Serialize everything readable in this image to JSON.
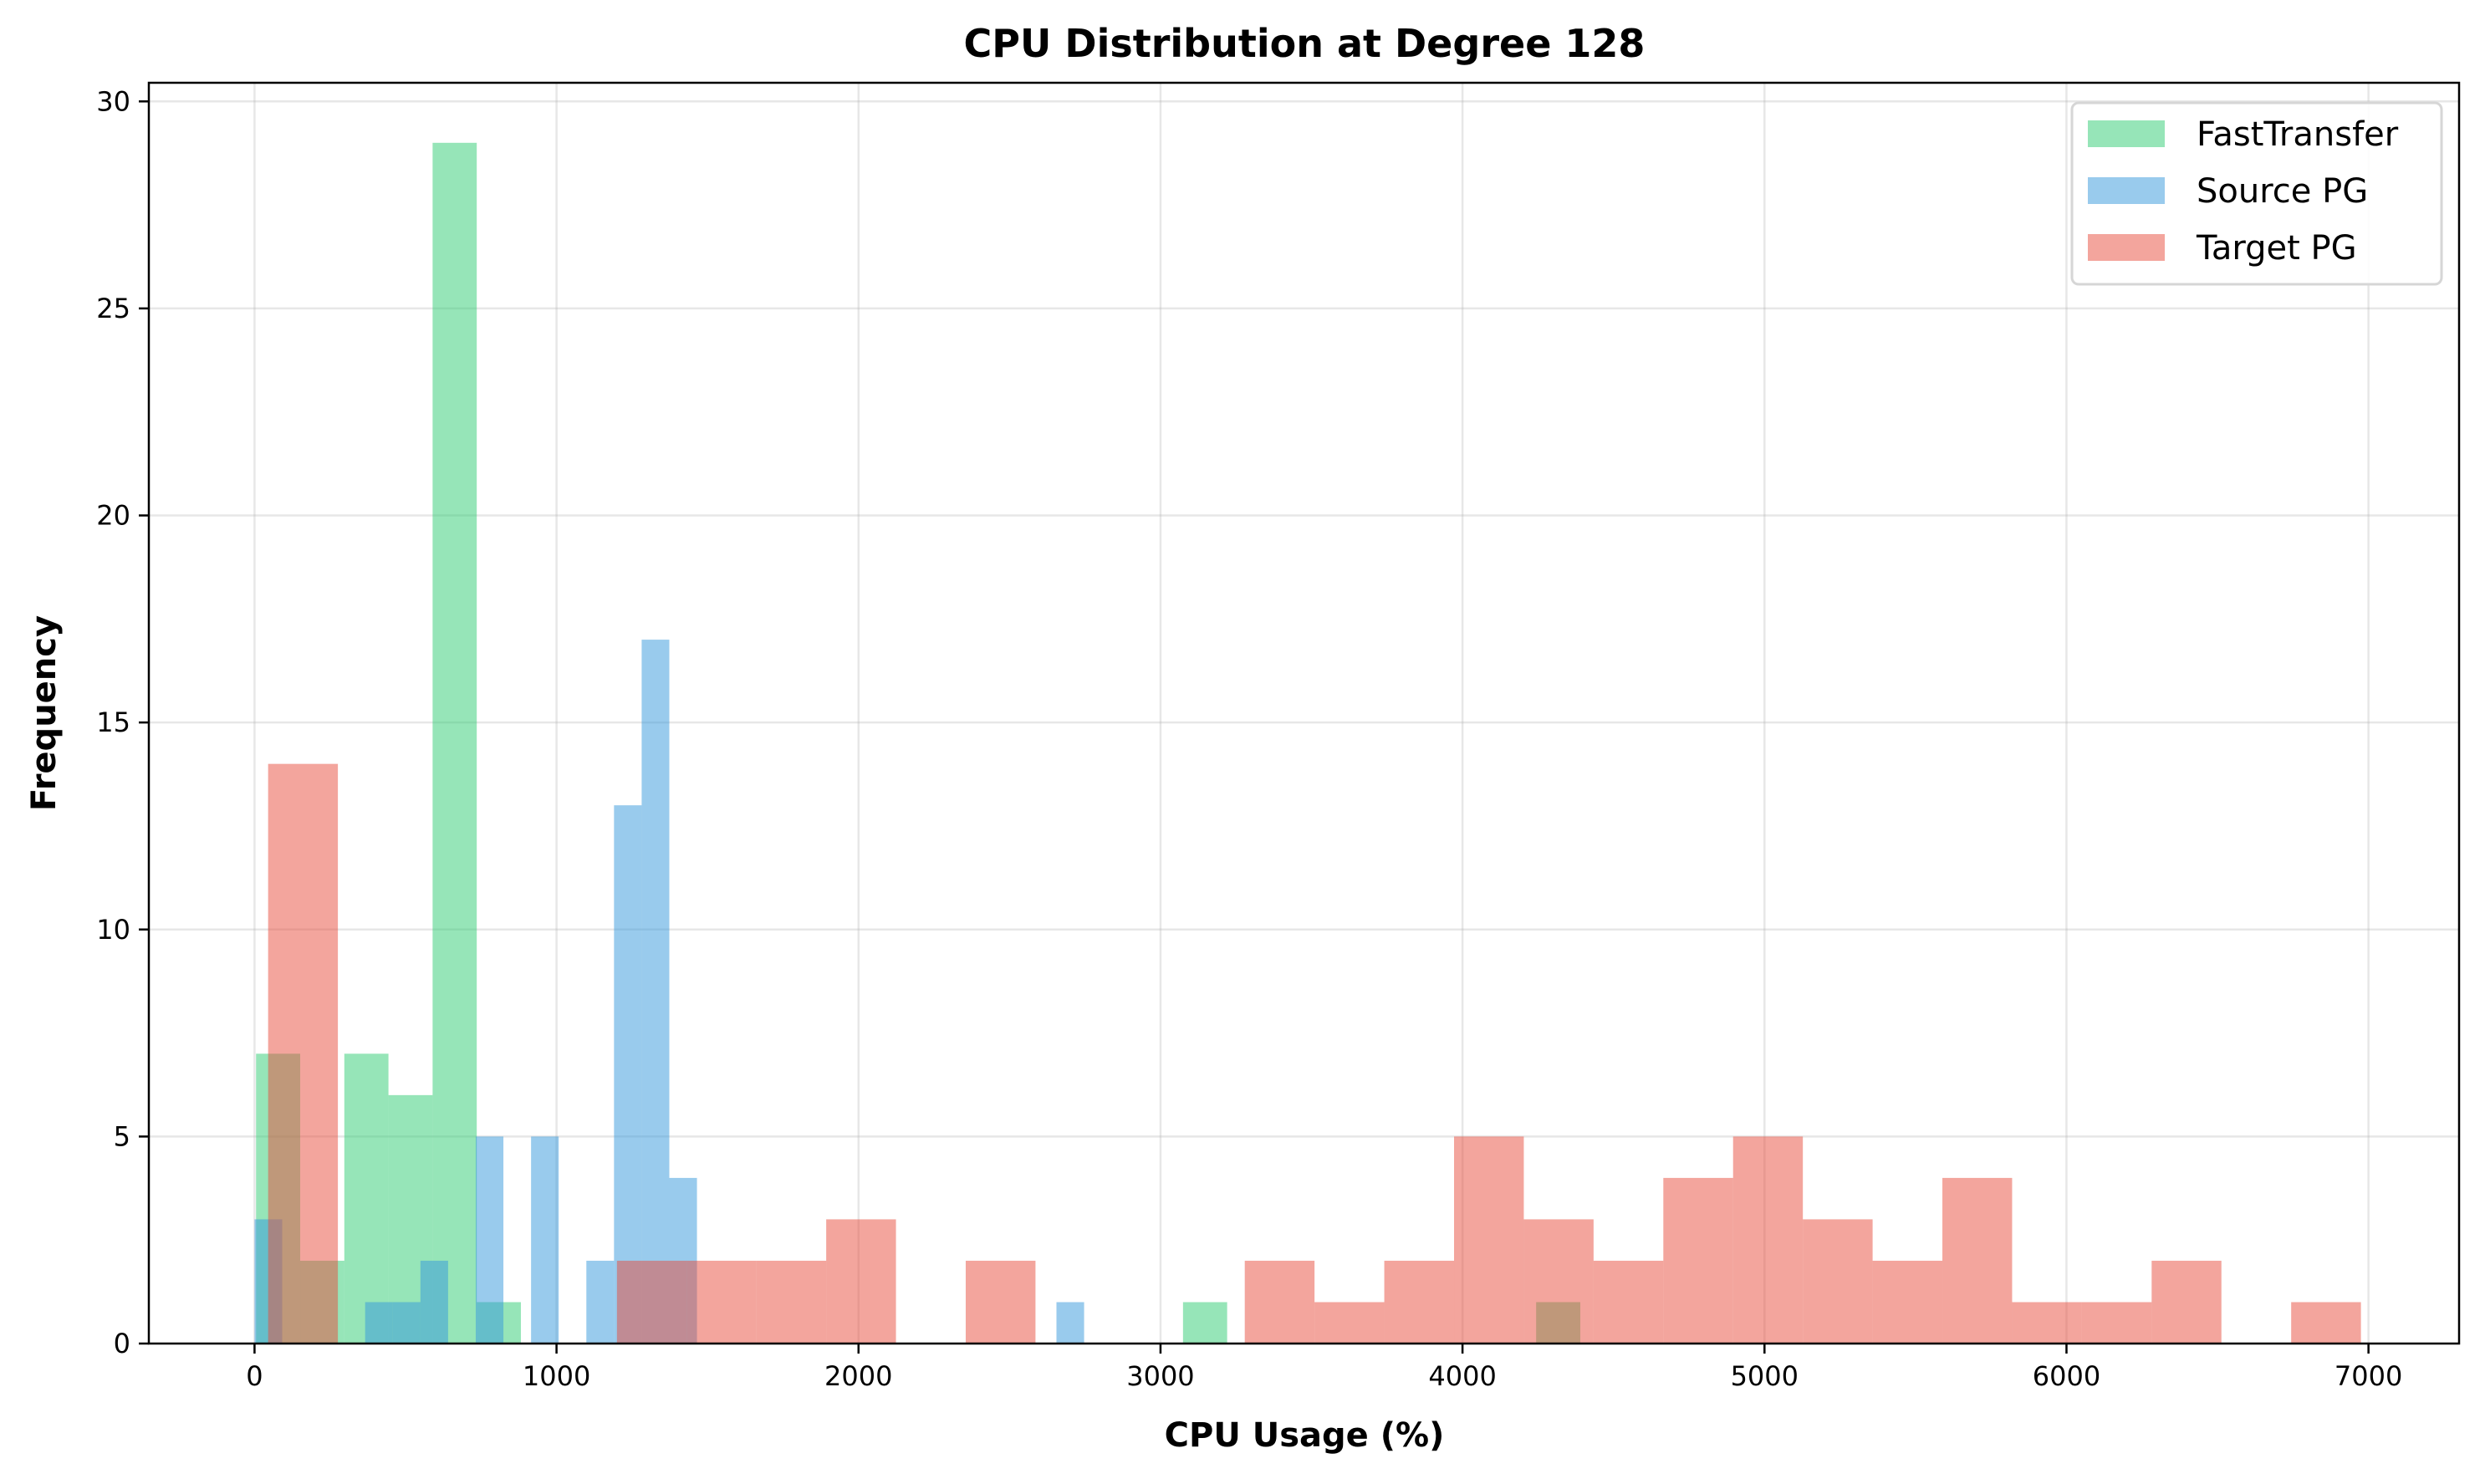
{
  "chart_data": {
    "type": "bar",
    "subtype": "overlapping-histogram",
    "title": "CPU Distribution at Degree 128",
    "xlabel": "CPU Usage (%)",
    "ylabel": "Frequency",
    "xlim": [
      -350,
      7300
    ],
    "ylim": [
      0,
      30.45
    ],
    "xticks": [
      "0",
      "1000",
      "2000",
      "3000",
      "4000",
      "5000",
      "6000",
      "7000"
    ],
    "xtick_values": [
      0,
      1000,
      2000,
      3000,
      4000,
      5000,
      6000,
      7000
    ],
    "yticks": [
      "0",
      "5",
      "10",
      "15",
      "20",
      "25",
      "30"
    ],
    "ytick_values": [
      0,
      5,
      10,
      15,
      20,
      25,
      30
    ],
    "grid": true,
    "legend_position": "top-right",
    "opacity": 0.5,
    "series": [
      {
        "name": "FastTransfer",
        "color": "#2ecc71",
        "bin_range": [
          5,
          4390
        ],
        "counts": [
          7,
          2,
          7,
          6,
          29,
          1,
          0,
          0,
          0,
          0,
          0,
          0,
          0,
          0,
          0,
          0,
          0,
          0,
          0,
          0,
          0,
          1,
          0,
          0,
          0,
          0,
          0,
          0,
          0,
          1
        ]
      },
      {
        "name": "Source PG",
        "color": "#3498db",
        "bin_range": [
          0,
          2747
        ],
        "counts": [
          3,
          0,
          0,
          0,
          1,
          1,
          2,
          0,
          5,
          0,
          5,
          0,
          2,
          13,
          17,
          4,
          0,
          0,
          0,
          0,
          0,
          0,
          0,
          0,
          0,
          0,
          0,
          0,
          0,
          1
        ]
      },
      {
        "name": "Target PG",
        "color": "#e74c3c",
        "bin_range": [
          45,
          6975
        ],
        "counts": [
          14,
          0,
          0,
          0,
          0,
          2,
          2,
          2,
          3,
          0,
          2,
          0,
          0,
          0,
          2,
          1,
          2,
          5,
          3,
          2,
          4,
          5,
          3,
          2,
          4,
          1,
          1,
          2,
          0,
          1
        ]
      }
    ]
  }
}
